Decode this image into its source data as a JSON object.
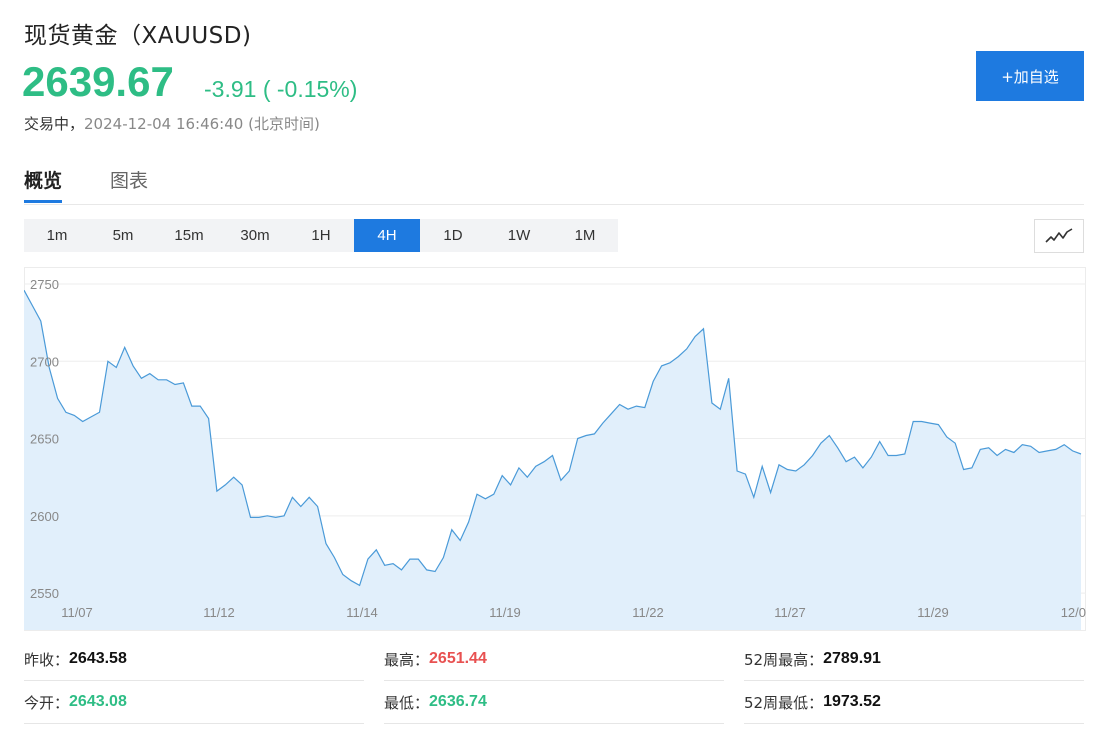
{
  "header": {
    "title": "现货黄金（XAUUSD)",
    "price": "2639.67",
    "change": "-3.91 ( -0.15%)",
    "status": "交易中，",
    "time": "2024-12-04 16:46:40 (北京时间)",
    "add_button": "+加自选"
  },
  "tabs": [
    {
      "label": "概览",
      "active": true
    },
    {
      "label": "图表",
      "active": false
    }
  ],
  "periods": [
    {
      "label": "1m",
      "active": false
    },
    {
      "label": "5m",
      "active": false
    },
    {
      "label": "15m",
      "active": false
    },
    {
      "label": "30m",
      "active": false
    },
    {
      "label": "1H",
      "active": false
    },
    {
      "label": "4H",
      "active": true
    },
    {
      "label": "1D",
      "active": false
    },
    {
      "label": "1W",
      "active": false
    },
    {
      "label": "1M",
      "active": false
    }
  ],
  "chart_type_icon": "line-chart-icon",
  "colors": {
    "up": "#2ebd85",
    "down": "#e85151",
    "accent": "#1e7ae0",
    "line": "#4a9ad8",
    "area": "#e1effb"
  },
  "chart_data": {
    "type": "area",
    "y_ticks": [
      2750,
      2700,
      2650,
      2600,
      2550
    ],
    "ylim": [
      2541,
      2761
    ],
    "x_labels": [
      "11/07",
      "11/12",
      "11/14",
      "11/19",
      "11/22",
      "11/27",
      "11/29",
      "12/0"
    ],
    "grid": true,
    "values": [
      2746,
      2736,
      2726,
      2696,
      2676,
      2667,
      2665,
      2661,
      2664,
      2667,
      2700,
      2696,
      2709,
      2697,
      2689,
      2692,
      2688,
      2688,
      2685,
      2686,
      2671,
      2671,
      2663,
      2616,
      2620,
      2625,
      2620,
      2599,
      2599,
      2600,
      2599,
      2600,
      2612,
      2606,
      2612,
      2606,
      2582,
      2573,
      2562,
      2558,
      2555,
      2572,
      2578,
      2568,
      2569,
      2565,
      2572,
      2572,
      2565,
      2564,
      2573,
      2591,
      2584,
      2596,
      2614,
      2611,
      2614,
      2626,
      2620,
      2631,
      2625,
      2632,
      2635,
      2639,
      2623,
      2629,
      2650,
      2652,
      2653,
      2660,
      2666,
      2672,
      2669,
      2671,
      2670,
      2687,
      2697,
      2699,
      2703,
      2708,
      2716,
      2721,
      2673,
      2669,
      2689,
      2629,
      2627,
      2612,
      2632,
      2615,
      2633,
      2630,
      2629,
      2633,
      2639,
      2647,
      2652,
      2644,
      2635,
      2638,
      2631,
      2638,
      2648,
      2639,
      2639,
      2640,
      2661,
      2661,
      2660,
      2659,
      2651,
      2647,
      2630,
      2631,
      2643,
      2644,
      2639,
      2643,
      2641,
      2646,
      2645,
      2641,
      2642,
      2643,
      2646,
      2642,
      2640
    ]
  },
  "stats": [
    {
      "label": "昨收：",
      "value": "2643.58",
      "tone": "black"
    },
    {
      "label": "最高：",
      "value": "2651.44",
      "tone": "red"
    },
    {
      "label": "52周最高：",
      "value": "2789.91",
      "tone": "black"
    },
    {
      "label": "今开：",
      "value": "2643.08",
      "tone": "green"
    },
    {
      "label": "最低：",
      "value": "2636.74",
      "tone": "green"
    },
    {
      "label": "52周最低：",
      "value": "1973.52",
      "tone": "black"
    }
  ]
}
